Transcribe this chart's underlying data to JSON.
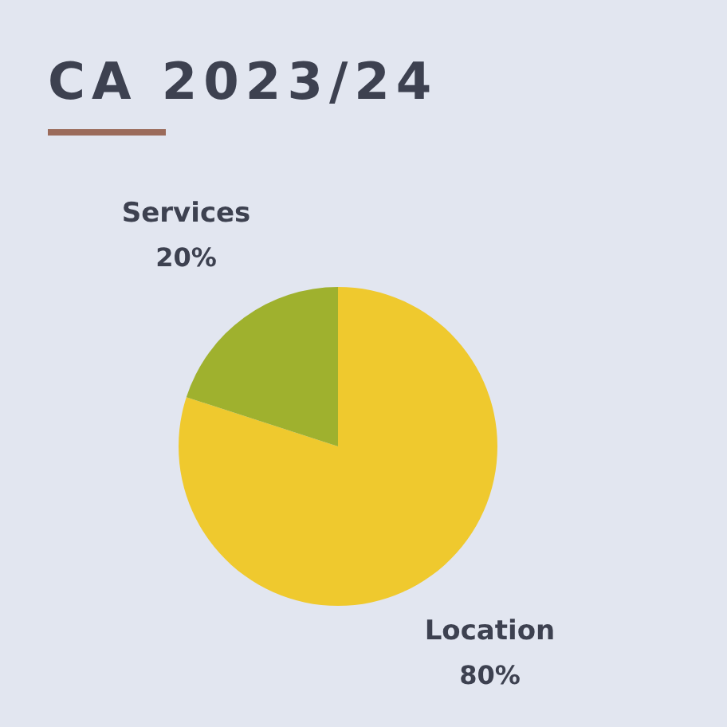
{
  "chart_data": {
    "type": "pie",
    "title": "CA 2023/24",
    "categories": [
      "Location",
      "Services"
    ],
    "values": [
      80,
      20
    ],
    "value_labels": [
      "80%",
      "20%"
    ],
    "colors": [
      "#efc92e",
      "#9fb12e"
    ]
  }
}
